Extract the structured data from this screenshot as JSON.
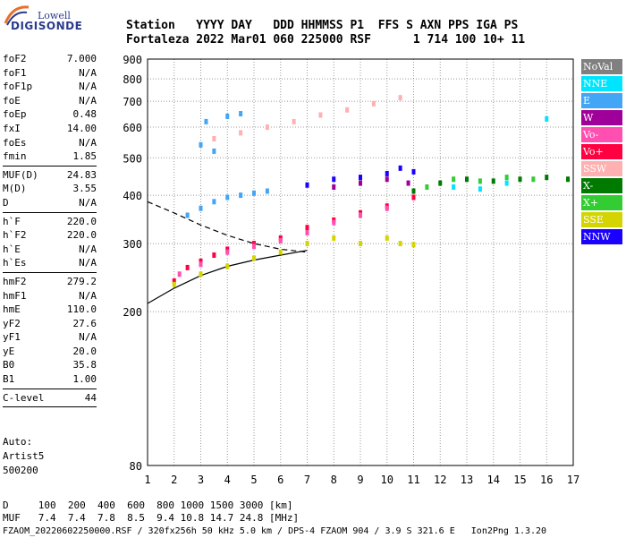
{
  "logo": {
    "line1": "Lowell",
    "line2": "DIGISONDE"
  },
  "header": {
    "labels_line": "Station   YYYY DAY   DDD HHMMSS P1  FFS S AXN PPS IGA PS",
    "values_line": "Fortaleza 2022 Mar01 060 225000 RSF      1 714 100 10+ 11"
  },
  "params": {
    "group1": [
      {
        "name": "foF2",
        "value": "7.000"
      },
      {
        "name": "foF1",
        "value": "N/A"
      },
      {
        "name": "foF1p",
        "value": "N/A"
      },
      {
        "name": "foE",
        "value": "N/A"
      },
      {
        "name": "foEp",
        "value": "0.48"
      },
      {
        "name": "fxI",
        "value": "14.00"
      },
      {
        "name": "foEs",
        "value": "N/A"
      },
      {
        "name": "fmin",
        "value": "1.85"
      }
    ],
    "group2": [
      {
        "name": "MUF(D)",
        "value": "24.83"
      },
      {
        "name": "M(D)",
        "value": "3.55"
      },
      {
        "name": "D",
        "value": "N/A"
      }
    ],
    "group3": [
      {
        "name": "h`F",
        "value": "220.0"
      },
      {
        "name": "h`F2",
        "value": "220.0"
      },
      {
        "name": "h`E",
        "value": "N/A"
      },
      {
        "name": "h`Es",
        "value": "N/A"
      }
    ],
    "group4": [
      {
        "name": "hmF2",
        "value": "279.2"
      },
      {
        "name": "hmF1",
        "value": "N/A"
      },
      {
        "name": "hmE",
        "value": "110.0"
      },
      {
        "name": "yF2",
        "value": "27.6"
      },
      {
        "name": "yF1",
        "value": "N/A"
      },
      {
        "name": "yE",
        "value": "20.0"
      },
      {
        "name": "B0",
        "value": "35.8"
      },
      {
        "name": "B1",
        "value": "1.00"
      }
    ],
    "group5": [
      {
        "name": "C-level",
        "value": "44"
      }
    ]
  },
  "auto": {
    "line1": "Auto:",
    "line2": "Artist5",
    "line3": "500200"
  },
  "legend": [
    {
      "label": "NoVal",
      "color": "#808080"
    },
    {
      "label": "NNE",
      "color": "#00e5ff"
    },
    {
      "label": "E",
      "color": "#42a5f5"
    },
    {
      "label": "W",
      "color": "#a0009a"
    },
    {
      "label": "Vo-",
      "color": "#ff4fb0"
    },
    {
      "label": "Vo+",
      "color": "#ff0040"
    },
    {
      "label": "SSW",
      "color": "#ffb0b0"
    },
    {
      "label": "X-",
      "color": "#007a00"
    },
    {
      "label": "X+",
      "color": "#33cc33"
    },
    {
      "label": "SSE",
      "color": "#d4d400"
    },
    {
      "label": "NNW",
      "color": "#1a00ff"
    }
  ],
  "chart_data": {
    "type": "scatter",
    "title": "",
    "xlabel": "",
    "ylabel": "",
    "xlim": [
      1,
      17
    ],
    "ylim": [
      80,
      900
    ],
    "x_ticks": [
      1,
      2,
      3,
      4,
      5,
      6,
      7,
      8,
      9,
      10,
      11,
      12,
      13,
      14,
      15,
      16,
      17
    ],
    "y_ticks": [
      80,
      200,
      300,
      400,
      500,
      600,
      700,
      800,
      900
    ],
    "grid": true,
    "legend_position": "right",
    "series": [
      {
        "name": "E",
        "color": "#42a5f5",
        "points": [
          [
            2.5,
            355
          ],
          [
            3,
            370
          ],
          [
            3.5,
            385
          ],
          [
            4,
            395
          ],
          [
            4.5,
            400
          ],
          [
            5,
            405
          ],
          [
            5.5,
            410
          ],
          [
            3.2,
            620
          ],
          [
            4,
            640
          ],
          [
            4.5,
            650
          ],
          [
            3,
            540
          ],
          [
            3.5,
            520
          ]
        ]
      },
      {
        "name": "Vo+",
        "color": "#ff0040",
        "points": [
          [
            2,
            240
          ],
          [
            2.5,
            260
          ],
          [
            3,
            270
          ],
          [
            3.5,
            280
          ],
          [
            4,
            290
          ],
          [
            5,
            300
          ],
          [
            6,
            310
          ],
          [
            7,
            330
          ],
          [
            8,
            345
          ],
          [
            9,
            360
          ],
          [
            10,
            375
          ],
          [
            11,
            395
          ]
        ]
      },
      {
        "name": "Vo-",
        "color": "#ff4fb0",
        "points": [
          [
            2.2,
            250
          ],
          [
            3,
            265
          ],
          [
            4,
            285
          ],
          [
            5,
            295
          ],
          [
            6,
            305
          ],
          [
            7,
            320
          ],
          [
            8,
            340
          ],
          [
            9,
            355
          ],
          [
            10,
            370
          ]
        ]
      },
      {
        "name": "SSE",
        "color": "#d4d400",
        "points": [
          [
            2,
            235
          ],
          [
            3,
            250
          ],
          [
            4,
            262
          ],
          [
            5,
            275
          ],
          [
            6,
            285
          ],
          [
            7,
            300
          ],
          [
            8,
            310
          ],
          [
            9,
            300
          ],
          [
            10,
            310
          ],
          [
            10.5,
            300
          ],
          [
            11,
            298
          ]
        ]
      },
      {
        "name": "SSW",
        "color": "#ffb0b0",
        "points": [
          [
            3.5,
            560
          ],
          [
            4.5,
            580
          ],
          [
            5.5,
            600
          ],
          [
            6.5,
            620
          ],
          [
            7.5,
            645
          ],
          [
            8.5,
            665
          ],
          [
            9.5,
            690
          ],
          [
            10.5,
            715
          ]
        ]
      },
      {
        "name": "NNW",
        "color": "#1a00ff",
        "points": [
          [
            7,
            425
          ],
          [
            8,
            440
          ],
          [
            9,
            445
          ],
          [
            10,
            455
          ],
          [
            10.5,
            470
          ],
          [
            11,
            460
          ]
        ]
      },
      {
        "name": "W",
        "color": "#a0009a",
        "points": [
          [
            8,
            420
          ],
          [
            9,
            430
          ],
          [
            10,
            440
          ],
          [
            10.8,
            430
          ]
        ]
      },
      {
        "name": "X-",
        "color": "#007a00",
        "points": [
          [
            11,
            410
          ],
          [
            12,
            430
          ],
          [
            13,
            440
          ],
          [
            14,
            435
          ],
          [
            15,
            440
          ],
          [
            16,
            445
          ],
          [
            16.8,
            440
          ]
        ]
      },
      {
        "name": "X+",
        "color": "#33cc33",
        "points": [
          [
            11.5,
            420
          ],
          [
            12.5,
            440
          ],
          [
            13.5,
            435
          ],
          [
            14.5,
            445
          ],
          [
            15.5,
            440
          ]
        ]
      },
      {
        "name": "NNE",
        "color": "#00e5ff",
        "points": [
          [
            12.5,
            420
          ],
          [
            13.5,
            415
          ],
          [
            14.5,
            430
          ],
          [
            16,
            630
          ]
        ]
      }
    ],
    "curves": [
      {
        "name": "solid-trace",
        "style": "solid",
        "color": "#000000",
        "points": [
          [
            1,
            210
          ],
          [
            2,
            230
          ],
          [
            3,
            248
          ],
          [
            4,
            262
          ],
          [
            5,
            272
          ],
          [
            6,
            280
          ],
          [
            7,
            288
          ]
        ]
      },
      {
        "name": "dashed-trace",
        "style": "dashed",
        "color": "#000000",
        "points": [
          [
            1,
            385
          ],
          [
            2,
            360
          ],
          [
            3,
            335
          ],
          [
            4,
            315
          ],
          [
            5,
            300
          ],
          [
            6,
            290
          ],
          [
            7,
            285
          ]
        ]
      }
    ]
  },
  "bottom": {
    "d_line": "D     100  200  400  600  800 1000 1500 3000 [km]",
    "muf_line": "MUF   7.4  7.4  7.8  8.5  9.4 10.8 14.7 24.8 [MHz]",
    "footer": "FZAOM_20220602250000.RSF / 320fx256h 50 kHz 5.0 km / DPS-4 FZAOM 904 / 3.9 S 321.6 E   Ion2Png 1.3.20"
  }
}
